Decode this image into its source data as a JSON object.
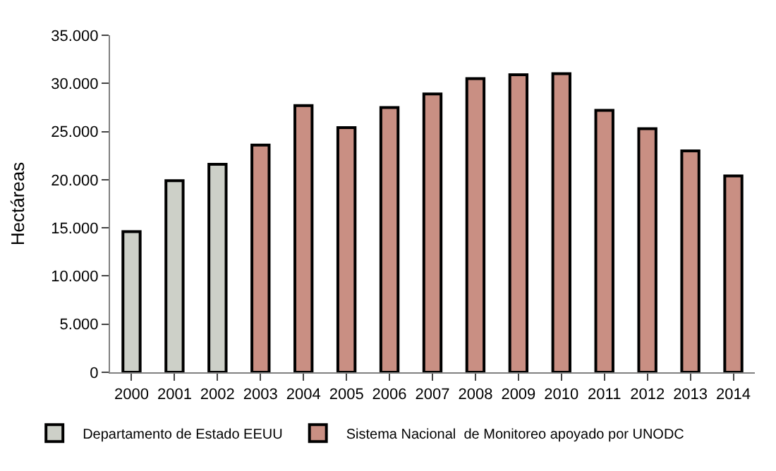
{
  "chart_data": {
    "type": "bar",
    "ylabel": "Hectáreas",
    "categories": [
      "2000",
      "2001",
      "2002",
      "2003",
      "2004",
      "2005",
      "2006",
      "2007",
      "2008",
      "2009",
      "2010",
      "2011",
      "2012",
      "2013",
      "2014"
    ],
    "series": [
      {
        "name": "Departamento de Estado EEUU",
        "color": "#cdd0c8",
        "values": [
          14600,
          19900,
          21600,
          null,
          null,
          null,
          null,
          null,
          null,
          null,
          null,
          null,
          null,
          null,
          null
        ]
      },
      {
        "name": "Sistema Nacional  de Monitoreo apoyado por UNODC",
        "color": "#c98f83",
        "values": [
          null,
          null,
          null,
          23600,
          27700,
          25400,
          27500,
          28900,
          30500,
          30900,
          31000,
          27200,
          25300,
          23000,
          20400
        ]
      }
    ],
    "ylim": [
      0,
      35000
    ],
    "yticks": [
      {
        "value": 0,
        "label": "0"
      },
      {
        "value": 5000,
        "label": "5.000"
      },
      {
        "value": 10000,
        "label": "10.000"
      },
      {
        "value": 15000,
        "label": "15.000"
      },
      {
        "value": 20000,
        "label": "20.000"
      },
      {
        "value": 25000,
        "label": "25.000"
      },
      {
        "value": 30000,
        "label": "30.000"
      },
      {
        "value": 35000,
        "label": "35.000"
      }
    ],
    "legend": "bottom"
  }
}
